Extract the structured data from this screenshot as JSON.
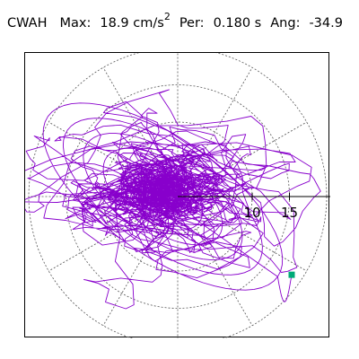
{
  "header": {
    "station": "CWAH",
    "max_label": "Max:",
    "max_value": "18.9 cm/s",
    "max_unit_sup": "2",
    "per_label": "Per:",
    "per_value": "0.180 s",
    "ang_label": "Ang:",
    "ang_value": "-34.9"
  },
  "chart_data": {
    "type": "scatter",
    "subtype": "polar-particle-motion",
    "max_amplitude": 18.9,
    "period_s": 0.18,
    "angle_deg": -34.9,
    "rings": [
      5,
      10,
      15,
      20
    ],
    "ring_labels": [
      "10",
      "15"
    ],
    "spokes_deg": [
      0,
      30,
      60,
      90,
      120,
      150,
      180,
      210,
      240,
      270,
      300,
      330
    ],
    "grid_style": "dotted",
    "trace_color": "#8800cc",
    "end_marker_color": "#00aa77",
    "end_point": [
      15.3,
      -10.5
    ]
  }
}
